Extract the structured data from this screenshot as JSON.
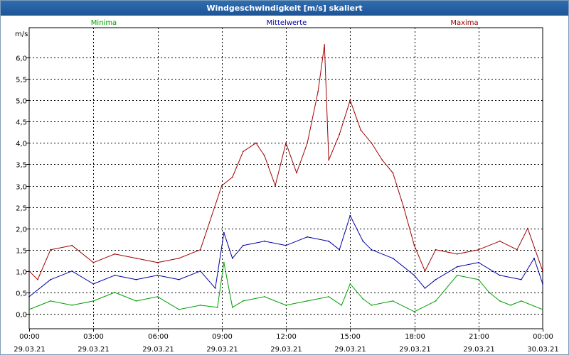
{
  "window": {
    "title": "Windgeschwindigkeit [m/s] skaliert"
  },
  "colors": {
    "minima": "#00a000",
    "mittelwerte": "#0000a8",
    "maxima": "#a00000",
    "grid": "#000000",
    "title_bar": "#1f5ca4"
  },
  "chart_data": {
    "type": "line",
    "title": "Windgeschwindigkeit [m/s] skaliert",
    "ylabel": "m/s",
    "xlabel": "",
    "ylim": [
      -0.35,
      6.7
    ],
    "xlim_hours": [
      0,
      24
    ],
    "y_ticks": [
      0.0,
      0.5,
      1.0,
      1.5,
      2.0,
      2.5,
      3.0,
      3.5,
      4.0,
      4.5,
      5.0,
      5.5,
      6.0
    ],
    "y_tick_labels": [
      "0,0",
      "0,5",
      "1,0",
      "1,5",
      "2,0",
      "2,5",
      "3,0",
      "3,5",
      "4,0",
      "4,5",
      "5,0",
      "5,5",
      "6,0"
    ],
    "x_ticks_hours": [
      0,
      3,
      6,
      9,
      12,
      15,
      18,
      21,
      24
    ],
    "x_tick_times": [
      "00:00",
      "03:00",
      "06:00",
      "09:00",
      "12:00",
      "15:00",
      "18:00",
      "21:00",
      "00:00"
    ],
    "x_tick_dates": [
      "29.03.21",
      "29.03.21",
      "29.03.21",
      "29.03.21",
      "29.03.21",
      "29.03.21",
      "29.03.21",
      "29.03.21",
      "30.03.21"
    ],
    "grid": true,
    "legend_position": "top",
    "series": [
      {
        "name": "Minima",
        "color": "#00a000",
        "hours": [
          0,
          1,
          2,
          3,
          4,
          5,
          6,
          7,
          8,
          8.8,
          9.1,
          9.5,
          10,
          11,
          12,
          13,
          14,
          14.6,
          15,
          15.6,
          16,
          17,
          18,
          19,
          20,
          21,
          21.5,
          22,
          22.5,
          23,
          24
        ],
        "values": [
          0.1,
          0.3,
          0.2,
          0.3,
          0.5,
          0.3,
          0.4,
          0.1,
          0.2,
          0.15,
          1.2,
          0.15,
          0.3,
          0.4,
          0.2,
          0.3,
          0.4,
          0.2,
          0.7,
          0.35,
          0.2,
          0.3,
          0.05,
          0.3,
          0.9,
          0.8,
          0.5,
          0.3,
          0.2,
          0.3,
          0.1
        ]
      },
      {
        "name": "Mittelwerte",
        "color": "#0000a8",
        "hours": [
          0,
          1,
          2,
          3,
          4,
          5,
          6,
          7,
          8,
          8.7,
          9.1,
          9.5,
          10,
          11,
          12,
          13,
          14,
          14.5,
          15,
          15.6,
          16,
          17,
          18,
          18.5,
          19,
          20,
          21,
          22,
          23,
          23.6,
          24
        ],
        "values": [
          0.4,
          0.8,
          1.0,
          0.7,
          0.9,
          0.8,
          0.9,
          0.8,
          1.0,
          0.6,
          1.9,
          1.3,
          1.6,
          1.7,
          1.6,
          1.8,
          1.7,
          1.5,
          2.3,
          1.7,
          1.5,
          1.3,
          0.9,
          0.6,
          0.8,
          1.1,
          1.2,
          0.9,
          0.8,
          1.3,
          0.7
        ]
      },
      {
        "name": "Maxima",
        "color": "#a00000",
        "hours": [
          0,
          0.4,
          1,
          2,
          3,
          4,
          5,
          6,
          7,
          8,
          9,
          9.5,
          10,
          10.6,
          11,
          11.5,
          12,
          12.5,
          13,
          13.5,
          13.8,
          14,
          14.5,
          15,
          15.5,
          16,
          16.5,
          17,
          17.5,
          18,
          18.5,
          19,
          20,
          21,
          22,
          22.8,
          23.3,
          24
        ],
        "values": [
          1.0,
          0.8,
          1.5,
          1.6,
          1.2,
          1.4,
          1.3,
          1.2,
          1.3,
          1.5,
          3.0,
          3.2,
          3.8,
          4.0,
          3.7,
          3.0,
          4.0,
          3.3,
          4.0,
          5.2,
          6.3,
          3.6,
          4.2,
          5.0,
          4.3,
          4.0,
          3.6,
          3.3,
          2.5,
          1.6,
          1.0,
          1.5,
          1.4,
          1.5,
          1.7,
          1.5,
          2.0,
          1.0
        ]
      }
    ]
  }
}
